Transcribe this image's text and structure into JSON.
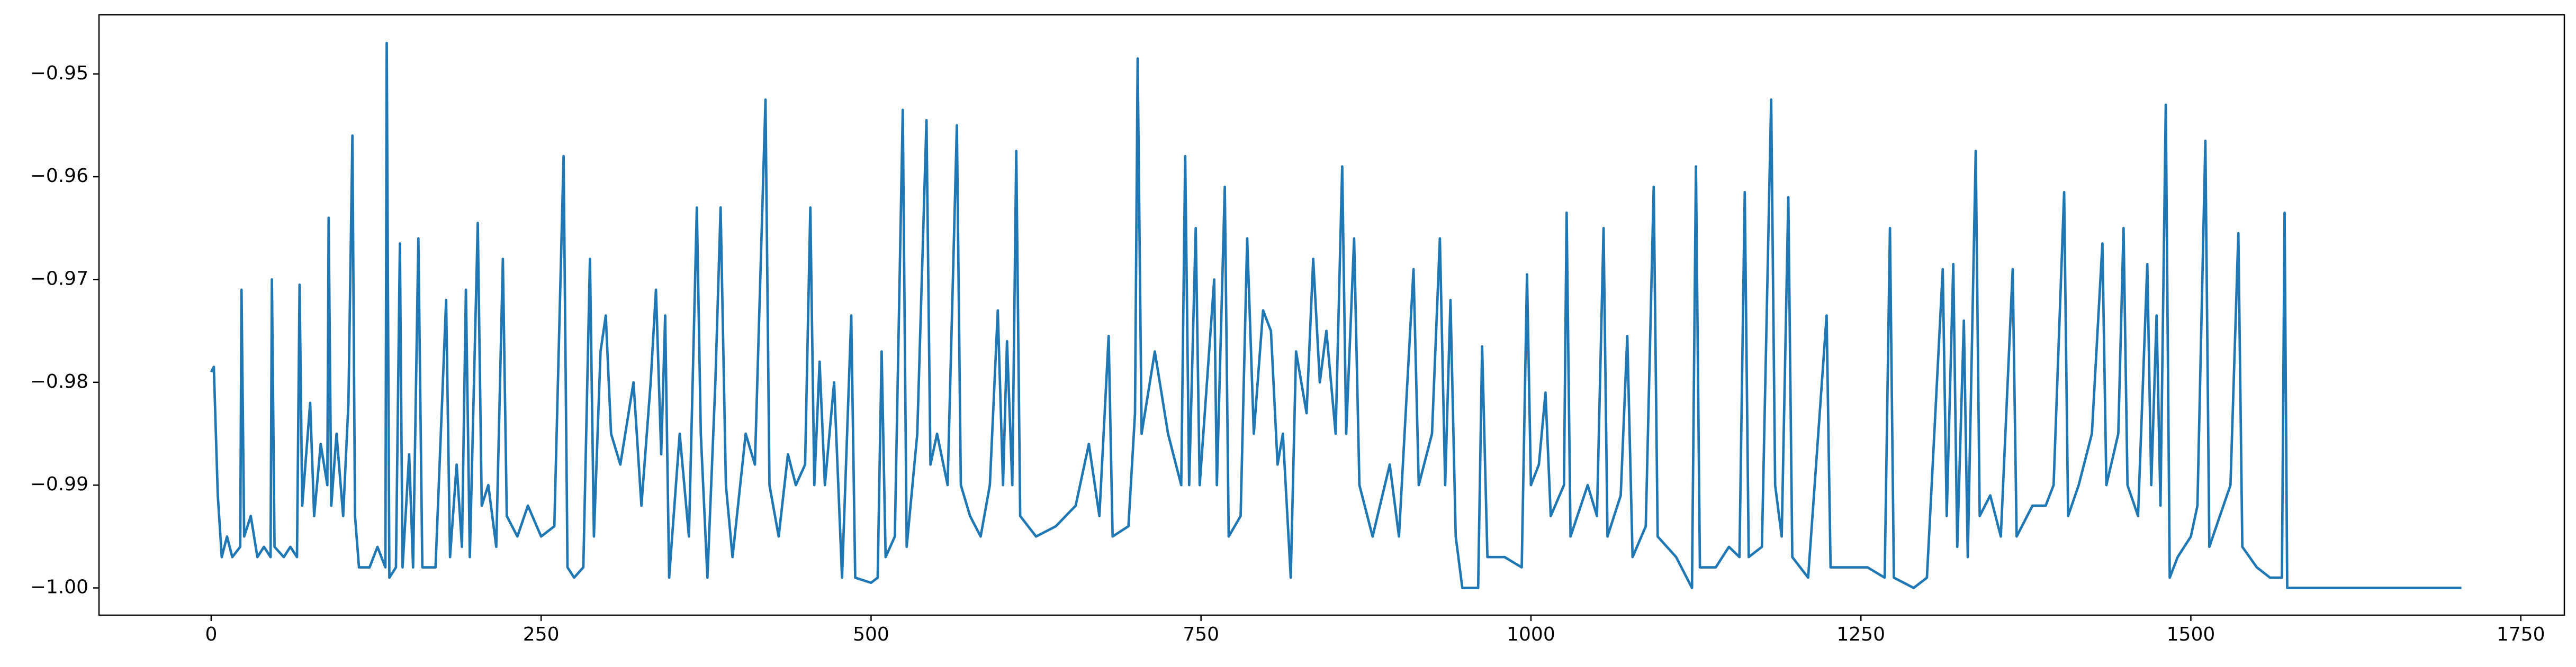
{
  "chart_data": {
    "type": "line",
    "color": "#1f77b4",
    "xlim": [
      -85,
      1783
    ],
    "ylim": [
      -1.00265,
      -0.94425
    ],
    "xticks": [
      0,
      250,
      500,
      750,
      1000,
      1250,
      1500,
      1750
    ],
    "yticks": [
      {
        "value": -1.0,
        "label": "−1.00"
      },
      {
        "value": -0.99,
        "label": "−0.99"
      },
      {
        "value": -0.98,
        "label": "−0.98"
      },
      {
        "value": -0.97,
        "label": "−0.97"
      },
      {
        "value": -0.96,
        "label": "−0.96"
      },
      {
        "value": -0.95,
        "label": "−0.95"
      }
    ],
    "x": [
      0,
      2,
      5,
      8,
      12,
      16,
      22,
      23,
      25,
      30,
      35,
      40,
      45,
      46,
      48,
      55,
      60,
      65,
      67,
      69,
      75,
      78,
      83,
      88,
      89,
      91,
      95,
      100,
      104,
      107,
      109,
      112,
      120,
      126,
      132,
      133,
      135,
      140,
      143,
      145,
      150,
      153,
      157,
      160,
      170,
      178,
      181,
      186,
      190,
      193,
      196,
      202,
      205,
      210,
      216,
      221,
      224,
      232,
      240,
      250,
      260,
      267,
      270,
      275,
      282,
      287,
      290,
      295,
      299,
      303,
      310,
      320,
      326,
      333,
      337,
      341,
      344,
      347,
      355,
      362,
      368,
      371,
      376,
      382,
      386,
      390,
      395,
      405,
      412,
      420,
      423,
      430,
      437,
      443,
      450,
      454,
      457,
      461,
      465,
      472,
      478,
      485,
      488,
      500,
      505,
      508,
      511,
      518,
      524,
      527,
      535,
      542,
      545,
      550,
      558,
      565,
      568,
      575,
      583,
      590,
      596,
      600,
      603,
      607,
      610,
      613,
      625,
      640,
      655,
      665,
      673,
      680,
      683,
      695,
      700,
      702,
      705,
      715,
      725,
      735,
      738,
      741,
      746,
      749,
      760,
      762,
      768,
      771,
      780,
      785,
      790,
      797,
      803,
      808,
      812,
      818,
      822,
      830,
      835,
      840,
      845,
      852,
      857,
      860,
      866,
      870,
      880,
      893,
      900,
      911,
      915,
      925,
      931,
      935,
      939,
      943,
      948,
      960,
      963,
      967,
      980,
      993,
      997,
      1000,
      1006,
      1011,
      1015,
      1025,
      1027,
      1030,
      1043,
      1050,
      1055,
      1058,
      1068,
      1073,
      1077,
      1087,
      1093,
      1096,
      1110,
      1122,
      1125,
      1128,
      1140,
      1150,
      1158,
      1162,
      1165,
      1175,
      1182,
      1185,
      1190,
      1195,
      1198,
      1210,
      1224,
      1227,
      1240,
      1255,
      1268,
      1272,
      1275,
      1290,
      1300,
      1312,
      1315,
      1320,
      1323,
      1328,
      1331,
      1337,
      1340,
      1348,
      1356,
      1365,
      1368,
      1380,
      1390,
      1396,
      1404,
      1407,
      1415,
      1425,
      1433,
      1436,
      1445,
      1449,
      1452,
      1460,
      1467,
      1470,
      1474,
      1477,
      1481,
      1484,
      1490,
      1500,
      1505,
      1511,
      1514,
      1522,
      1530,
      1536,
      1539,
      1550,
      1560,
      1569,
      1571,
      1573,
      1705
    ],
    "values": [
      -0.979,
      -0.9785,
      -0.991,
      -0.997,
      -0.995,
      -0.997,
      -0.996,
      -0.971,
      -0.995,
      -0.993,
      -0.997,
      -0.996,
      -0.997,
      -0.97,
      -0.996,
      -0.997,
      -0.996,
      -0.997,
      -0.9705,
      -0.992,
      -0.982,
      -0.993,
      -0.986,
      -0.99,
      -0.964,
      -0.992,
      -0.985,
      -0.993,
      -0.982,
      -0.956,
      -0.993,
      -0.998,
      -0.998,
      -0.996,
      -0.998,
      -0.947,
      -0.999,
      -0.998,
      -0.9665,
      -0.998,
      -0.987,
      -0.998,
      -0.966,
      -0.998,
      -0.998,
      -0.972,
      -0.997,
      -0.988,
      -0.996,
      -0.971,
      -0.997,
      -0.9645,
      -0.992,
      -0.99,
      -0.996,
      -0.968,
      -0.993,
      -0.995,
      -0.992,
      -0.995,
      -0.994,
      -0.958,
      -0.998,
      -0.999,
      -0.998,
      -0.968,
      -0.995,
      -0.977,
      -0.9735,
      -0.985,
      -0.988,
      -0.98,
      -0.992,
      -0.98,
      -0.971,
      -0.987,
      -0.9735,
      -0.999,
      -0.985,
      -0.995,
      -0.963,
      -0.985,
      -0.999,
      -0.98,
      -0.963,
      -0.99,
      -0.997,
      -0.985,
      -0.988,
      -0.9525,
      -0.99,
      -0.995,
      -0.987,
      -0.99,
      -0.988,
      -0.963,
      -0.99,
      -0.978,
      -0.99,
      -0.98,
      -0.999,
      -0.9735,
      -0.999,
      -0.9995,
      -0.999,
      -0.977,
      -0.997,
      -0.995,
      -0.9535,
      -0.996,
      -0.985,
      -0.9545,
      -0.988,
      -0.985,
      -0.99,
      -0.955,
      -0.99,
      -0.993,
      -0.995,
      -0.99,
      -0.973,
      -0.99,
      -0.976,
      -0.99,
      -0.9575,
      -0.993,
      -0.995,
      -0.994,
      -0.992,
      -0.986,
      -0.993,
      -0.9755,
      -0.995,
      -0.994,
      -0.983,
      -0.9485,
      -0.985,
      -0.977,
      -0.985,
      -0.99,
      -0.958,
      -0.99,
      -0.965,
      -0.99,
      -0.97,
      -0.99,
      -0.961,
      -0.995,
      -0.993,
      -0.966,
      -0.985,
      -0.973,
      -0.975,
      -0.988,
      -0.985,
      -0.999,
      -0.977,
      -0.983,
      -0.968,
      -0.98,
      -0.975,
      -0.985,
      -0.959,
      -0.985,
      -0.966,
      -0.99,
      -0.995,
      -0.988,
      -0.995,
      -0.969,
      -0.99,
      -0.985,
      -0.966,
      -0.99,
      -0.972,
      -0.995,
      -1.0,
      -1.0,
      -0.9765,
      -0.997,
      -0.997,
      -0.998,
      -0.9695,
      -0.99,
      -0.988,
      -0.981,
      -0.993,
      -0.99,
      -0.9635,
      -0.995,
      -0.99,
      -0.993,
      -0.965,
      -0.995,
      -0.991,
      -0.9755,
      -0.997,
      -0.994,
      -0.961,
      -0.995,
      -0.997,
      -1.0,
      -0.959,
      -0.998,
      -0.998,
      -0.996,
      -0.997,
      -0.9615,
      -0.997,
      -0.996,
      -0.9525,
      -0.99,
      -0.995,
      -0.962,
      -0.997,
      -0.999,
      -0.9735,
      -0.998,
      -0.998,
      -0.998,
      -0.999,
      -0.965,
      -0.999,
      -1.0,
      -0.999,
      -0.969,
      -0.993,
      -0.9685,
      -0.996,
      -0.974,
      -0.997,
      -0.9575,
      -0.993,
      -0.991,
      -0.995,
      -0.969,
      -0.995,
      -0.992,
      -0.992,
      -0.99,
      -0.9615,
      -0.993,
      -0.99,
      -0.985,
      -0.9665,
      -0.99,
      -0.985,
      -0.965,
      -0.99,
      -0.993,
      -0.9685,
      -0.99,
      -0.9735,
      -0.992,
      -0.953,
      -0.999,
      -0.997,
      -0.995,
      -0.992,
      -0.9565,
      -0.996,
      -0.993,
      -0.99,
      -0.9655,
      -0.996,
      -0.998,
      -0.999,
      -0.999,
      -0.9635,
      -1.0,
      -1.0
    ]
  }
}
